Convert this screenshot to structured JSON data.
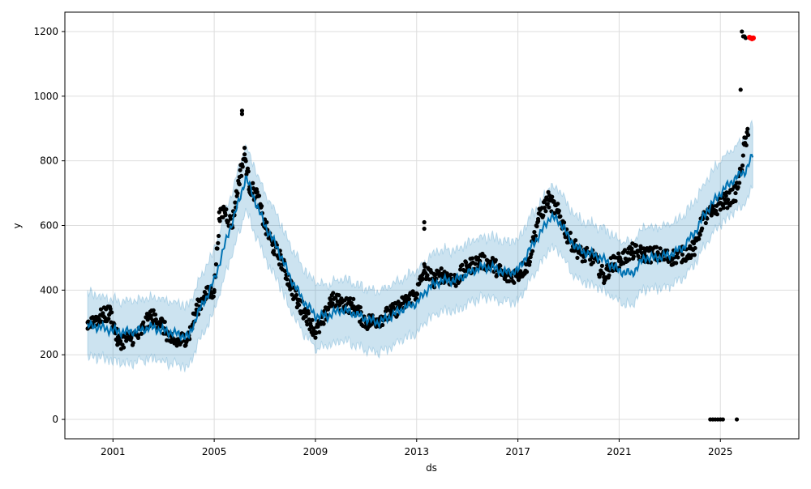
{
  "chart_data": {
    "type": "line",
    "title": "",
    "xlabel": "ds",
    "ylabel": "y",
    "xlim": [
      1999.1,
      2028.1
    ],
    "ylim": [
      -60,
      1260
    ],
    "grid": true,
    "xticks": [
      2001,
      2005,
      2009,
      2013,
      2017,
      2021,
      2025
    ],
    "xtick_labels": [
      "2001",
      "2005",
      "2009",
      "2013",
      "2017",
      "2021",
      "2025"
    ],
    "yticks": [
      0,
      200,
      400,
      600,
      800,
      1000,
      1200
    ],
    "ytick_labels": [
      "0",
      "200",
      "400",
      "600",
      "800",
      "1000",
      "1200"
    ],
    "colors": {
      "forecast": "#0072B2",
      "band": "#0072B2",
      "actual": "#000000",
      "highlight": "#ff0000"
    },
    "forecast": {
      "x": [
        2000.0,
        2000.5,
        2001.0,
        2001.5,
        2002.0,
        2002.5,
        2003.0,
        2003.5,
        2004.0,
        2004.3,
        2004.7,
        2005.0,
        2005.5,
        2006.0,
        2006.25,
        2006.6,
        2007.0,
        2007.5,
        2008.0,
        2008.5,
        2009.0,
        2009.5,
        2010.0,
        2010.5,
        2011.0,
        2011.5,
        2012.0,
        2012.5,
        2013.0,
        2013.5,
        2014.0,
        2014.5,
        2015.0,
        2015.5,
        2016.0,
        2016.5,
        2017.0,
        2017.5,
        2018.0,
        2018.3,
        2018.8,
        2019.0,
        2019.5,
        2020.0,
        2020.5,
        2021.0,
        2021.5,
        2022.0,
        2022.5,
        2023.0,
        2023.5,
        2024.0,
        2024.5,
        2025.0,
        2025.5,
        2026.0,
        2026.3
      ],
      "yhat": [
        290,
        285,
        275,
        270,
        275,
        285,
        275,
        265,
        255,
        320,
        380,
        430,
        560,
        680,
        750,
        680,
        600,
        530,
        440,
        370,
        320,
        320,
        340,
        330,
        310,
        300,
        320,
        345,
        360,
        410,
        430,
        430,
        450,
        470,
        470,
        455,
        460,
        530,
        590,
        630,
        600,
        560,
        520,
        510,
        490,
        460,
        450,
        500,
        500,
        510,
        530,
        580,
        650,
        700,
        740,
        770,
        820
      ],
      "band_halfwidth": [
        100,
        95,
        95,
        95,
        95,
        95,
        95,
        95,
        95,
        95,
        95,
        95,
        95,
        100,
        100,
        100,
        100,
        100,
        100,
        100,
        100,
        95,
        95,
        95,
        95,
        95,
        95,
        95,
        95,
        95,
        95,
        95,
        95,
        95,
        95,
        95,
        95,
        95,
        95,
        95,
        95,
        95,
        95,
        95,
        95,
        95,
        95,
        95,
        95,
        95,
        95,
        95,
        95,
        100,
        100,
        100,
        100
      ]
    },
    "actual": {
      "x": [
        2000.0,
        2000.3,
        2000.6,
        2000.9,
        2001.2,
        2001.6,
        2002.0,
        2002.5,
        2002.9,
        2003.3,
        2003.6,
        2004.0,
        2004.3,
        2004.6,
        2005.0,
        2005.2,
        2005.4,
        2005.7,
        2006.0,
        2006.2,
        2006.4,
        2006.7,
        2007.0,
        2007.3,
        2007.6,
        2008.0,
        2008.3,
        2008.6,
        2009.0,
        2009.3,
        2009.6,
        2010.0,
        2010.5,
        2011.0,
        2011.5,
        2012.0,
        2012.5,
        2013.0,
        2013.3,
        2013.7,
        2014.0,
        2014.5,
        2015.0,
        2015.5,
        2016.0,
        2016.5,
        2017.0,
        2017.4,
        2017.8,
        2018.2,
        2018.6,
        2019.0,
        2019.5,
        2020.0,
        2020.4,
        2020.7,
        2021.0,
        2021.5,
        2022.0,
        2022.5,
        2023.0,
        2023.5,
        2024.0,
        2024.3,
        2024.7,
        2025.0,
        2025.3,
        2025.6,
        2025.8,
        2025.95,
        2026.1
      ],
      "y": [
        300,
        310,
        320,
        330,
        240,
        250,
        260,
        320,
        300,
        240,
        240,
        260,
        340,
        380,
        400,
        620,
        650,
        600,
        750,
        820,
        720,
        690,
        600,
        540,
        500,
        420,
        360,
        330,
        270,
        300,
        370,
        360,
        350,
        300,
        310,
        330,
        360,
        390,
        460,
        430,
        450,
        430,
        470,
        490,
        480,
        440,
        450,
        480,
        620,
        680,
        640,
        560,
        510,
        500,
        440,
        480,
        490,
        520,
        510,
        510,
        500,
        510,
        530,
        620,
        640,
        670,
        680,
        700,
        760,
        850,
        880
      ]
    },
    "outliers": {
      "x": [
        2006.1,
        2006.1,
        2013.3,
        2013.3,
        2024.6,
        2024.7,
        2024.8,
        2024.9,
        2025.0,
        2025.1,
        2025.65,
        2025.8,
        2025.85,
        2025.9,
        2025.95,
        2026.0
      ],
      "y": [
        955,
        945,
        610,
        590,
        0,
        0,
        0,
        0,
        0,
        0,
        0,
        1020,
        1200,
        1185,
        1185,
        1180
      ]
    },
    "highlight": {
      "x": [
        2026.15,
        2026.2,
        2026.25,
        2026.3
      ],
      "y": [
        1182,
        1180,
        1178,
        1180
      ]
    }
  }
}
